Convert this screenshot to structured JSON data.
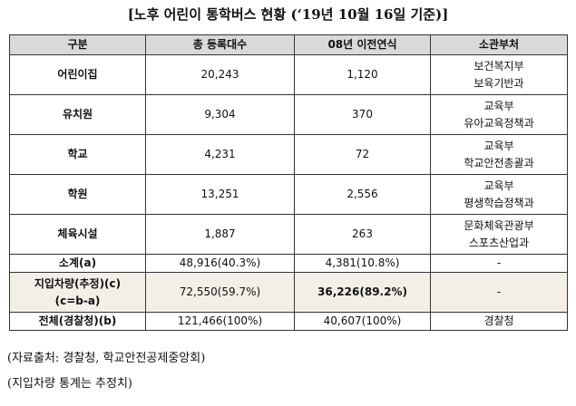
{
  "title": "[노후 어린이 통학버스 현황 (‘19년 10월 16일 기준)]",
  "table": {
    "header": [
      "구분",
      "총 등록대수",
      "08년 이전연식",
      "소관부처"
    ],
    "rows": [
      [
        [
          "어린이집"
        ],
        [
          "20,243"
        ],
        [
          "1,120"
        ],
        [
          "보건복지부",
          "보육기반과"
        ]
      ],
      [
        [
          "유치원"
        ],
        [
          "9,304"
        ],
        [
          "370"
        ],
        [
          "교육부",
          "유아교육정책과"
        ]
      ],
      [
        [
          "학교"
        ],
        [
          "4,231"
        ],
        [
          "72"
        ],
        [
          "교육부",
          "학교안전총괄과"
        ]
      ],
      [
        [
          "학원"
        ],
        [
          "13,251"
        ],
        [
          "2,556"
        ],
        [
          "교육부",
          "평생학습정책과"
        ]
      ],
      [
        [
          "체육시설"
        ],
        [
          "1,887"
        ],
        [
          "263"
        ],
        [
          "문화체육관광부",
          "스포츠산업과"
        ]
      ],
      [
        [
          "소계(a)"
        ],
        [
          "48,916(40.3%)"
        ],
        [
          "4,381(10.8%)"
        ],
        [
          "-"
        ]
      ],
      [
        [
          "지입차량(추정)(c)",
          "(c=b-a)"
        ],
        [
          "72,550(59.7%)"
        ],
        [
          "36,226(89.2%)"
        ],
        [
          "-"
        ]
      ],
      [
        [
          "전체(경찰청)(b)"
        ],
        [
          "121,466(100%)"
        ],
        [
          "40,607(100%)"
        ],
        [
          "경찰청"
        ]
      ]
    ]
  },
  "notes": [
    "(자료출처: 경찰청, 학교안전공제중앙회)",
    "(지입차량 통계는 추정치)"
  ]
}
